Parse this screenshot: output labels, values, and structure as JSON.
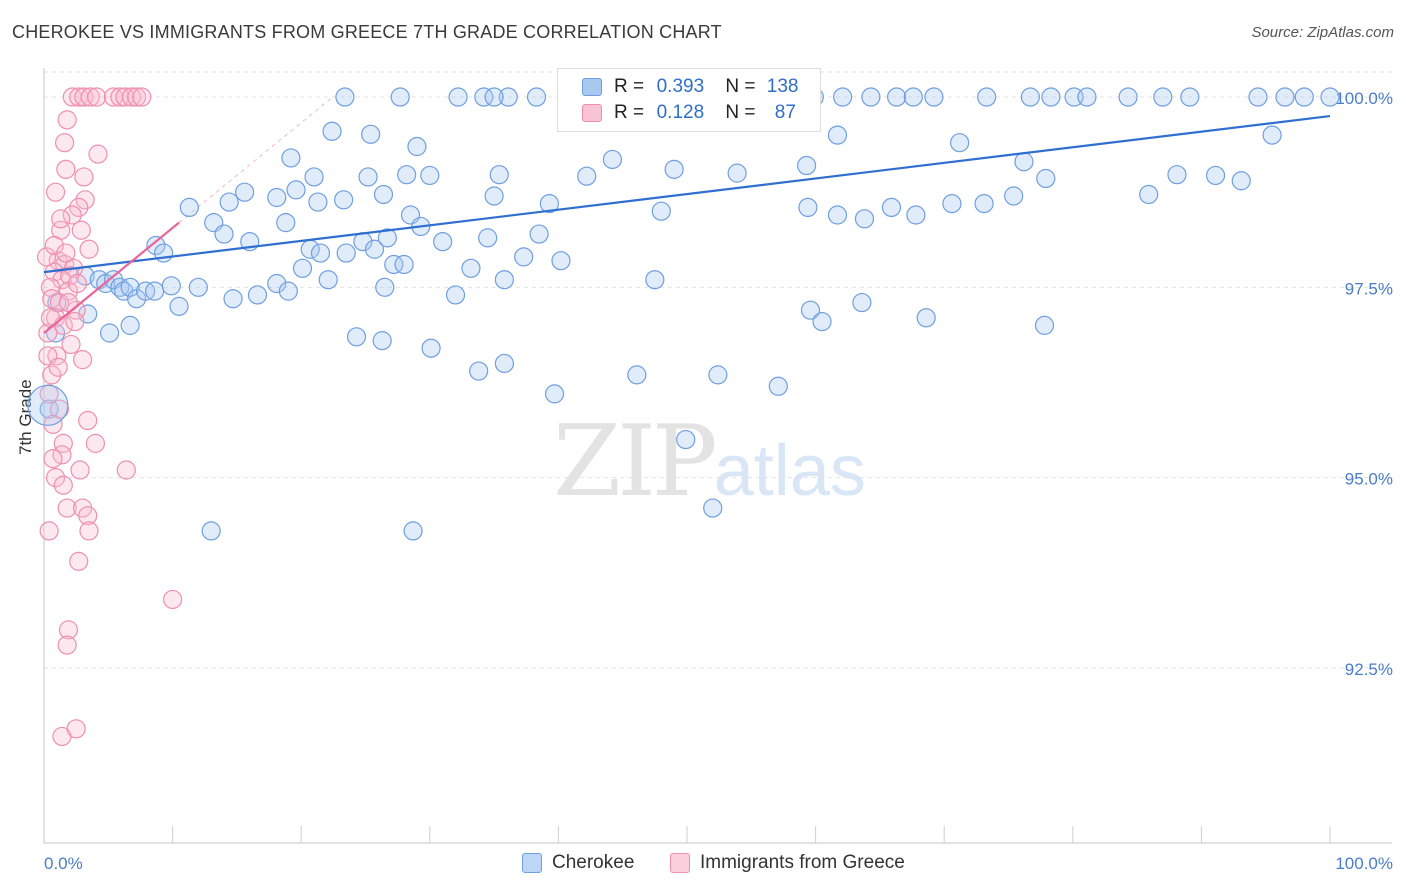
{
  "title": "CHEROKEE VS IMMIGRANTS FROM GREECE 7TH GRADE CORRELATION CHART",
  "source": "Source: ZipAtlas.com",
  "watermark": {
    "zip": "ZIP",
    "atlas": "atlas"
  },
  "legend": {
    "r_label": "R =",
    "n_label": "N =",
    "rows": [
      {
        "r": "0.393",
        "n": "138",
        "color": "#a9c8f0",
        "border": "#6f9fe0"
      },
      {
        "r": "0.128",
        "n": "87",
        "color": "#f8c4d4",
        "border": "#ef8fae"
      }
    ]
  },
  "bottom_legend": [
    {
      "label": "Cherokee",
      "color": "#bdd6f5",
      "border": "#6f9fe0"
    },
    {
      "label": "Immigrants from Greece",
      "color": "#fbd0dd",
      "border": "#ef8fae"
    }
  ],
  "chart_data": {
    "type": "scatter",
    "title": "CHEROKEE VS IMMIGRANTS FROM GREECE 7TH GRADE CORRELATION CHART",
    "xlabel": "",
    "ylabel": "7th Grade",
    "xlim": [
      0,
      100
    ],
    "ylim": [
      90.2,
      100.25
    ],
    "x_tick_labels": [
      "0.0%",
      "100.0%"
    ],
    "y_ticks": [
      92.5,
      95.0,
      97.5,
      100.0
    ],
    "y_tick_labels": [
      "92.5%",
      "95.0%",
      "97.5%",
      "100.0%"
    ],
    "grid": true,
    "colors": {
      "Cherokee": "#4a86d8",
      "Immigrants from Greece": "#e8739a",
      "blue_line": "#2f6fd0",
      "pink_line": "#e8669a"
    },
    "series": [
      {
        "name": "Cherokee",
        "trend": [
          [
            0,
            97.7
          ],
          [
            100,
            99.75
          ]
        ],
        "points": [
          [
            23.4,
            100
          ],
          [
            27.7,
            100
          ],
          [
            32.2,
            100
          ],
          [
            34.2,
            100
          ],
          [
            36.1,
            100
          ],
          [
            38.3,
            100
          ],
          [
            42.7,
            100
          ],
          [
            45.4,
            100
          ],
          [
            48.3,
            100
          ],
          [
            51.4,
            100
          ],
          [
            54.0,
            100
          ],
          [
            57.6,
            100
          ],
          [
            59.9,
            100
          ],
          [
            62.1,
            100
          ],
          [
            64.3,
            100
          ],
          [
            66.3,
            100
          ],
          [
            69.2,
            100
          ],
          [
            73.3,
            100
          ],
          [
            76.7,
            100
          ],
          [
            78.3,
            100
          ],
          [
            80.1,
            100
          ],
          [
            87.0,
            100
          ],
          [
            89.1,
            100
          ],
          [
            96.5,
            100
          ],
          [
            98.0,
            100
          ],
          [
            100,
            100
          ],
          [
            94.4,
            100
          ],
          [
            84.3,
            100
          ],
          [
            67.6,
            100
          ],
          [
            35.0,
            100
          ],
          [
            81.1,
            100
          ],
          [
            22.4,
            99.55
          ],
          [
            25.4,
            99.51
          ],
          [
            29.0,
            99.35
          ],
          [
            19.2,
            99.2
          ],
          [
            44.2,
            99.18
          ],
          [
            59.3,
            99.1
          ],
          [
            21.0,
            98.95
          ],
          [
            25.2,
            98.95
          ],
          [
            28.2,
            98.98
          ],
          [
            30.0,
            98.97
          ],
          [
            35.4,
            98.98
          ],
          [
            42.2,
            98.96
          ],
          [
            49.0,
            99.05
          ],
          [
            53.9,
            99.0
          ],
          [
            76.2,
            99.15
          ],
          [
            77.9,
            98.93
          ],
          [
            88.1,
            98.98
          ],
          [
            91.1,
            98.97
          ],
          [
            95.5,
            99.5
          ],
          [
            61.7,
            99.5
          ],
          [
            71.2,
            99.4
          ],
          [
            14.4,
            98.62
          ],
          [
            11.3,
            98.55
          ],
          [
            15.6,
            98.75
          ],
          [
            18.1,
            98.68
          ],
          [
            19.6,
            98.78
          ],
          [
            21.3,
            98.62
          ],
          [
            23.3,
            98.65
          ],
          [
            26.4,
            98.72
          ],
          [
            28.5,
            98.45
          ],
          [
            35.0,
            98.7
          ],
          [
            39.3,
            98.6
          ],
          [
            48.0,
            98.5
          ],
          [
            59.4,
            98.55
          ],
          [
            61.7,
            98.45
          ],
          [
            63.8,
            98.4
          ],
          [
            65.9,
            98.55
          ],
          [
            67.8,
            98.45
          ],
          [
            70.6,
            98.6
          ],
          [
            73.1,
            98.6
          ],
          [
            75.4,
            98.7
          ],
          [
            85.9,
            98.72
          ],
          [
            93.1,
            98.9
          ],
          [
            13.2,
            98.35
          ],
          [
            14.0,
            98.2
          ],
          [
            16.0,
            98.1
          ],
          [
            18.8,
            98.35
          ],
          [
            20.7,
            98.0
          ],
          [
            21.5,
            97.95
          ],
          [
            23.5,
            97.95
          ],
          [
            24.8,
            98.1
          ],
          [
            25.7,
            98.0
          ],
          [
            26.7,
            98.15
          ],
          [
            27.2,
            97.8
          ],
          [
            29.3,
            98.3
          ],
          [
            31.0,
            98.1
          ],
          [
            34.5,
            98.15
          ],
          [
            38.5,
            98.2
          ],
          [
            8.7,
            98.05
          ],
          [
            9.3,
            97.95
          ],
          [
            3.2,
            97.65
          ],
          [
            4.3,
            97.6
          ],
          [
            4.8,
            97.55
          ],
          [
            5.4,
            97.6
          ],
          [
            5.9,
            97.5
          ],
          [
            6.2,
            97.45
          ],
          [
            6.7,
            97.5
          ],
          [
            7.2,
            97.35
          ],
          [
            7.9,
            97.45
          ],
          [
            8.6,
            97.45
          ],
          [
            9.9,
            97.52
          ],
          [
            12.0,
            97.5
          ],
          [
            14.7,
            97.35
          ],
          [
            16.6,
            97.4
          ],
          [
            18.1,
            97.55
          ],
          [
            19.0,
            97.45
          ],
          [
            20.1,
            97.75
          ],
          [
            22.1,
            97.6
          ],
          [
            26.5,
            97.5
          ],
          [
            28.0,
            97.8
          ],
          [
            32.0,
            97.4
          ],
          [
            33.2,
            97.75
          ],
          [
            35.8,
            97.6
          ],
          [
            37.3,
            97.9
          ],
          [
            40.2,
            97.85
          ],
          [
            47.5,
            97.6
          ],
          [
            59.6,
            97.2
          ],
          [
            63.6,
            97.3
          ],
          [
            68.6,
            97.1
          ],
          [
            77.8,
            97.0
          ],
          [
            1.0,
            97.3
          ],
          [
            3.4,
            97.15
          ],
          [
            5.1,
            96.9
          ],
          [
            6.7,
            97.0
          ],
          [
            10.5,
            97.25
          ],
          [
            24.3,
            96.85
          ],
          [
            26.3,
            96.8
          ],
          [
            30.1,
            96.7
          ],
          [
            33.8,
            96.4
          ],
          [
            35.8,
            96.5
          ],
          [
            39.7,
            96.1
          ],
          [
            46.1,
            96.35
          ],
          [
            49.9,
            95.5
          ],
          [
            52.4,
            96.35
          ],
          [
            57.1,
            96.2
          ],
          [
            60.5,
            97.05
          ],
          [
            0.9,
            96.9
          ],
          [
            0.4,
            95.9
          ],
          [
            13.0,
            94.3
          ],
          [
            28.7,
            94.3
          ],
          [
            52.0,
            94.6
          ]
        ]
      },
      {
        "name": "Immigrants from Greece",
        "trend": [
          [
            0,
            96.9
          ],
          [
            10.5,
            98.35
          ]
        ],
        "points": [
          [
            2.2,
            100
          ],
          [
            2.7,
            100
          ],
          [
            3.1,
            100
          ],
          [
            3.6,
            100
          ],
          [
            4.1,
            100
          ],
          [
            5.4,
            100
          ],
          [
            5.9,
            100
          ],
          [
            6.3,
            100
          ],
          [
            6.8,
            100
          ],
          [
            7.2,
            100
          ],
          [
            7.6,
            100
          ],
          [
            1.8,
            99.7
          ],
          [
            1.6,
            99.4
          ],
          [
            4.2,
            99.25
          ],
          [
            1.7,
            99.05
          ],
          [
            3.1,
            98.95
          ],
          [
            0.9,
            98.75
          ],
          [
            3.2,
            98.65
          ],
          [
            2.7,
            98.55
          ],
          [
            2.2,
            98.45
          ],
          [
            1.3,
            98.25
          ],
          [
            2.9,
            98.25
          ],
          [
            3.5,
            98.0
          ],
          [
            1.1,
            97.85
          ],
          [
            1.6,
            97.8
          ],
          [
            2.3,
            97.75
          ],
          [
            0.8,
            97.7
          ],
          [
            1.4,
            97.6
          ],
          [
            2.0,
            97.65
          ],
          [
            0.5,
            97.5
          ],
          [
            1.9,
            97.45
          ],
          [
            0.6,
            97.35
          ],
          [
            1.2,
            97.3
          ],
          [
            2.5,
            97.2
          ],
          [
            0.9,
            97.1
          ],
          [
            1.5,
            97.0
          ],
          [
            0.3,
            96.9
          ],
          [
            2.1,
            96.75
          ],
          [
            1.0,
            96.6
          ],
          [
            3.0,
            96.55
          ],
          [
            0.6,
            96.35
          ],
          [
            0.4,
            96.1
          ],
          [
            1.2,
            95.9
          ],
          [
            0.7,
            95.7
          ],
          [
            3.4,
            95.75
          ],
          [
            1.5,
            95.45
          ],
          [
            4.0,
            95.45
          ],
          [
            1.4,
            95.3
          ],
          [
            2.8,
            95.1
          ],
          [
            0.9,
            95.0
          ],
          [
            1.5,
            94.9
          ],
          [
            6.4,
            95.1
          ],
          [
            1.8,
            94.6
          ],
          [
            3.0,
            94.6
          ],
          [
            3.4,
            94.5
          ],
          [
            3.5,
            94.3
          ],
          [
            0.4,
            94.3
          ],
          [
            2.7,
            93.9
          ],
          [
            10.0,
            93.4
          ],
          [
            1.9,
            93.0
          ],
          [
            1.8,
            92.8
          ],
          [
            1.4,
            91.6
          ],
          [
            2.5,
            91.7
          ],
          [
            0.2,
            97.9
          ],
          [
            0.5,
            97.1
          ],
          [
            0.8,
            98.05
          ],
          [
            1.7,
            97.95
          ],
          [
            2.6,
            97.55
          ],
          [
            0.3,
            96.6
          ],
          [
            1.1,
            96.45
          ],
          [
            2.4,
            97.05
          ],
          [
            0.7,
            95.25
          ],
          [
            1.9,
            97.3
          ],
          [
            1.3,
            98.4
          ]
        ]
      }
    ]
  }
}
